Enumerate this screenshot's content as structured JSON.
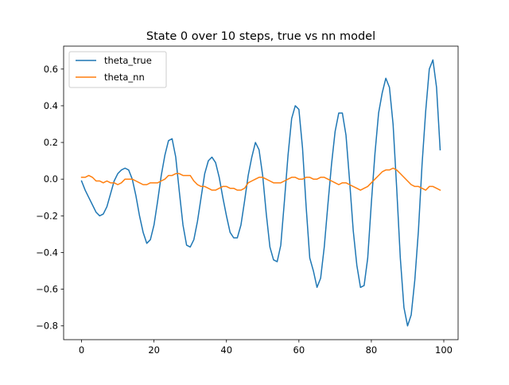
{
  "chart_data": {
    "type": "line",
    "title": "State 0 over 10 steps, true vs nn model",
    "xlabel": "",
    "ylabel": "",
    "xlim": [
      -4.95,
      103.95
    ],
    "ylim": [
      -0.875,
      0.725
    ],
    "x_ticks": [
      0,
      20,
      40,
      60,
      80,
      100
    ],
    "y_ticks": [
      -0.8,
      -0.6,
      -0.4,
      -0.2,
      0.0,
      0.2,
      0.4,
      0.6
    ],
    "x_tick_labels": [
      "0",
      "20",
      "40",
      "60",
      "80",
      "100"
    ],
    "y_tick_labels": [
      "−0.8",
      "−0.6",
      "−0.4",
      "−0.2",
      "0.0",
      "0.2",
      "0.4",
      "0.6"
    ],
    "grid": false,
    "legend_position": "upper-left",
    "series": [
      {
        "name": "theta_true",
        "color": "#1f77b4",
        "x": [
          0,
          1,
          2,
          3,
          4,
          5,
          6,
          7,
          8,
          9,
          10,
          11,
          12,
          13,
          14,
          15,
          16,
          17,
          18,
          19,
          20,
          21,
          22,
          23,
          24,
          25,
          26,
          27,
          28,
          29,
          30,
          31,
          32,
          33,
          34,
          35,
          36,
          37,
          38,
          39,
          40,
          41,
          42,
          43,
          44,
          45,
          46,
          47,
          48,
          49,
          50,
          51,
          52,
          53,
          54,
          55,
          56,
          57,
          58,
          59,
          60,
          61,
          62,
          63,
          64,
          65,
          66,
          67,
          68,
          69,
          70,
          71,
          72,
          73,
          74,
          75,
          76,
          77,
          78,
          79,
          80,
          81,
          82,
          83,
          84,
          85,
          86,
          87,
          88,
          89,
          90,
          91,
          92,
          93,
          94,
          95,
          96,
          97,
          98,
          99
        ],
        "values": [
          -0.01,
          -0.06,
          -0.1,
          -0.14,
          -0.18,
          -0.2,
          -0.19,
          -0.15,
          -0.08,
          -0.01,
          0.03,
          0.05,
          0.06,
          0.05,
          0.0,
          -0.09,
          -0.2,
          -0.29,
          -0.35,
          -0.33,
          -0.25,
          -0.12,
          0.02,
          0.13,
          0.21,
          0.22,
          0.12,
          -0.07,
          -0.25,
          -0.36,
          -0.37,
          -0.33,
          -0.23,
          -0.1,
          0.03,
          0.1,
          0.12,
          0.09,
          0.01,
          -0.1,
          -0.2,
          -0.29,
          -0.32,
          -0.32,
          -0.25,
          -0.12,
          0.02,
          0.12,
          0.2,
          0.16,
          0.02,
          -0.19,
          -0.37,
          -0.44,
          -0.45,
          -0.36,
          -0.12,
          0.13,
          0.33,
          0.4,
          0.38,
          0.17,
          -0.15,
          -0.43,
          -0.5,
          -0.59,
          -0.54,
          -0.37,
          -0.14,
          0.08,
          0.26,
          0.36,
          0.36,
          0.24,
          -0.01,
          -0.28,
          -0.47,
          -0.59,
          -0.58,
          -0.43,
          -0.13,
          0.14,
          0.36,
          0.47,
          0.55,
          0.5,
          0.3,
          -0.05,
          -0.43,
          -0.7,
          -0.8,
          -0.74,
          -0.55,
          -0.28,
          0.08,
          0.37,
          0.6,
          0.65,
          0.5,
          0.16
        ]
      },
      {
        "name": "theta_nn",
        "color": "#ff7f0e",
        "x": [
          0,
          1,
          2,
          3,
          4,
          5,
          6,
          7,
          8,
          9,
          10,
          11,
          12,
          13,
          14,
          15,
          16,
          17,
          18,
          19,
          20,
          21,
          22,
          23,
          24,
          25,
          26,
          27,
          28,
          29,
          30,
          31,
          32,
          33,
          34,
          35,
          36,
          37,
          38,
          39,
          40,
          41,
          42,
          43,
          44,
          45,
          46,
          47,
          48,
          49,
          50,
          51,
          52,
          53,
          54,
          55,
          56,
          57,
          58,
          59,
          60,
          61,
          62,
          63,
          64,
          65,
          66,
          67,
          68,
          69,
          70,
          71,
          72,
          73,
          74,
          75,
          76,
          77,
          78,
          79,
          80,
          81,
          82,
          83,
          84,
          85,
          86,
          87,
          88,
          89,
          90,
          91,
          92,
          93,
          94,
          95,
          96,
          97,
          98,
          99
        ],
        "values": [
          0.01,
          0.01,
          0.02,
          0.01,
          -0.01,
          -0.01,
          -0.02,
          -0.01,
          -0.02,
          -0.02,
          -0.03,
          -0.02,
          0.0,
          0.0,
          0.0,
          -0.01,
          -0.02,
          -0.03,
          -0.03,
          -0.02,
          -0.02,
          -0.02,
          -0.01,
          0.0,
          0.02,
          0.02,
          0.03,
          0.03,
          0.02,
          0.02,
          0.02,
          -0.01,
          -0.03,
          -0.04,
          -0.04,
          -0.05,
          -0.06,
          -0.06,
          -0.05,
          -0.04,
          -0.04,
          -0.05,
          -0.05,
          -0.06,
          -0.06,
          -0.05,
          -0.02,
          -0.01,
          0.0,
          0.01,
          0.01,
          0.0,
          -0.01,
          -0.02,
          -0.02,
          -0.02,
          -0.01,
          0.0,
          0.01,
          0.01,
          0.0,
          0.0,
          0.01,
          0.01,
          0.0,
          0.0,
          0.01,
          0.01,
          0.0,
          -0.01,
          -0.02,
          -0.03,
          -0.02,
          -0.02,
          -0.03,
          -0.04,
          -0.05,
          -0.06,
          -0.05,
          -0.04,
          -0.02,
          0.0,
          0.02,
          0.04,
          0.05,
          0.05,
          0.06,
          0.05,
          0.03,
          0.01,
          -0.01,
          -0.03,
          -0.04,
          -0.04,
          -0.05,
          -0.06,
          -0.04,
          -0.04,
          -0.05,
          -0.06
        ]
      }
    ]
  }
}
